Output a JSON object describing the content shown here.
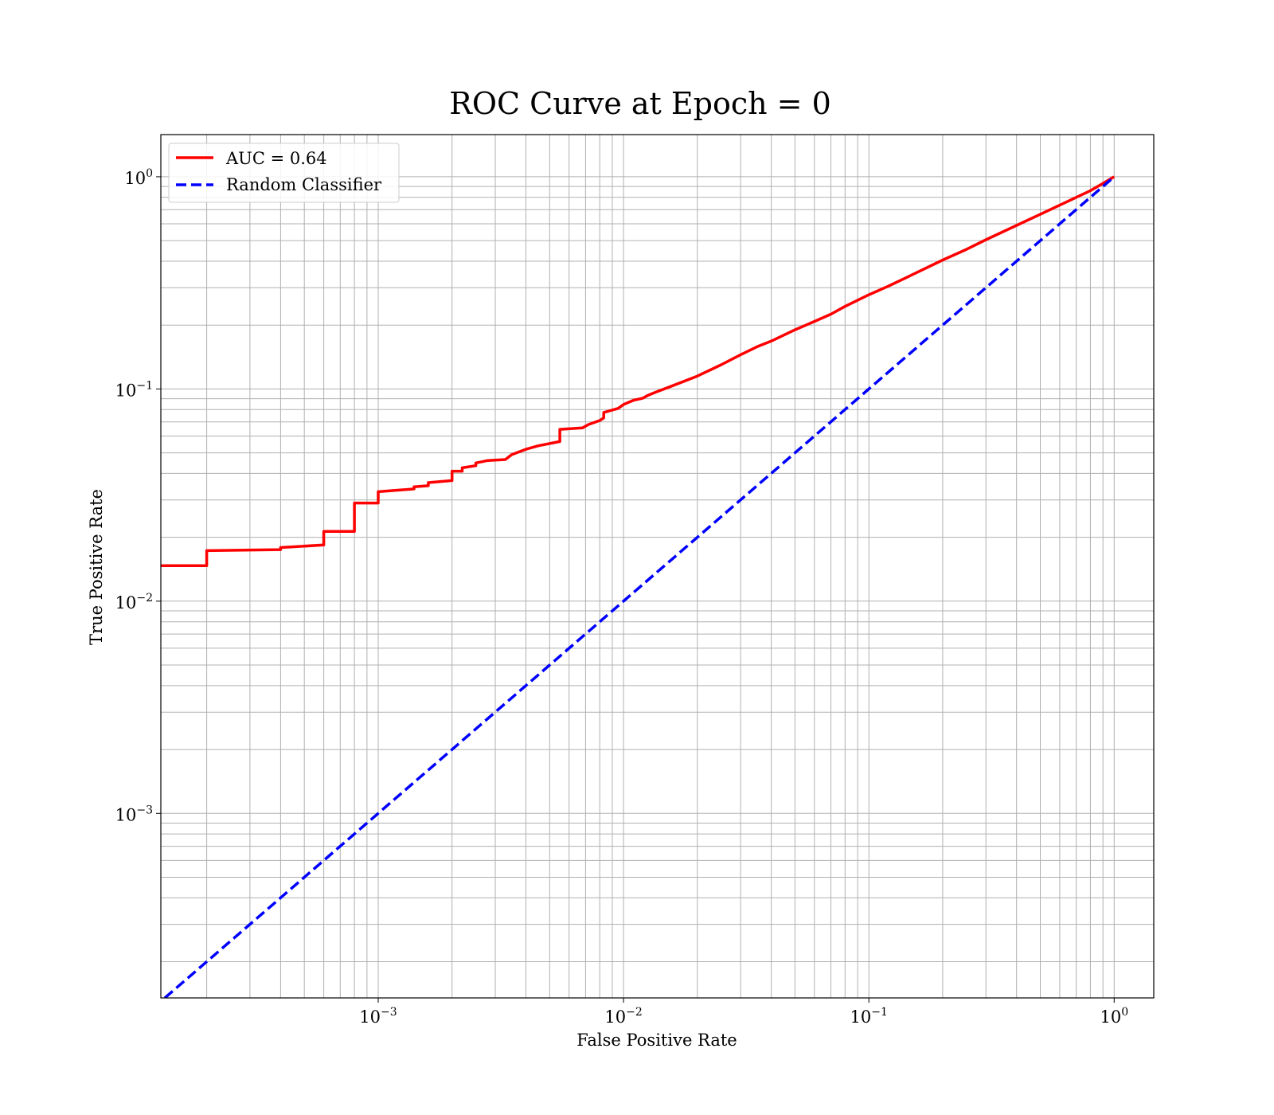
{
  "chart_data": {
    "type": "line",
    "title": "ROC Curve at Epoch = 0",
    "xlabel": "False Positive Rate",
    "ylabel": "True Positive Rate",
    "xscale": "log",
    "yscale": "log",
    "xlim": [
      0.00013,
      1.45
    ],
    "ylim": [
      0.000135,
      1.58
    ],
    "grid": true,
    "grid_minor": true,
    "legend_position": "top-left",
    "x_ticks": [
      {
        "value": 0.001,
        "base": "10",
        "exp": "−3"
      },
      {
        "value": 0.01,
        "base": "10",
        "exp": "−2"
      },
      {
        "value": 0.1,
        "base": "10",
        "exp": "−1"
      },
      {
        "value": 1,
        "base": "10",
        "exp": "0"
      }
    ],
    "y_ticks": [
      {
        "value": 0.001,
        "base": "10",
        "exp": "−3"
      },
      {
        "value": 0.01,
        "base": "10",
        "exp": "−2"
      },
      {
        "value": 0.1,
        "base": "10",
        "exp": "−1"
      },
      {
        "value": 1,
        "base": "10",
        "exp": "0"
      }
    ],
    "series": [
      {
        "name": "AUC = 0.64",
        "color": "#ff0000",
        "style": "solid",
        "x": [
          0.0001,
          0.0002,
          0.0002,
          0.0004,
          0.0004,
          0.0006,
          0.0006,
          0.0008,
          0.0008,
          0.001,
          0.001,
          0.0014,
          0.0014,
          0.0016,
          0.0016,
          0.002,
          0.002,
          0.0022,
          0.0022,
          0.0025,
          0.0025,
          0.0028,
          0.0033,
          0.0035,
          0.004,
          0.0045,
          0.0055,
          0.0055,
          0.0068,
          0.0072,
          0.008,
          0.0083,
          0.0083,
          0.0095,
          0.01,
          0.011,
          0.012,
          0.0125,
          0.0135,
          0.015,
          0.02,
          0.025,
          0.03,
          0.035,
          0.04,
          0.05,
          0.06,
          0.07,
          0.08,
          0.1,
          0.12,
          0.15,
          0.2,
          0.25,
          0.3,
          0.4,
          0.5,
          0.6,
          0.7,
          0.8,
          0.9,
          1.0
        ],
        "y": [
          0.0147,
          0.0147,
          0.0173,
          0.0175,
          0.0179,
          0.0184,
          0.0213,
          0.0213,
          0.029,
          0.029,
          0.0328,
          0.0338,
          0.0346,
          0.035,
          0.0362,
          0.037,
          0.041,
          0.041,
          0.0425,
          0.0435,
          0.0448,
          0.046,
          0.0465,
          0.049,
          0.052,
          0.054,
          0.0565,
          0.0645,
          0.0655,
          0.068,
          0.071,
          0.073,
          0.0775,
          0.081,
          0.0845,
          0.0885,
          0.0905,
          0.093,
          0.0965,
          0.101,
          0.115,
          0.13,
          0.145,
          0.158,
          0.168,
          0.19,
          0.208,
          0.225,
          0.245,
          0.278,
          0.305,
          0.345,
          0.405,
          0.455,
          0.505,
          0.59,
          0.665,
          0.735,
          0.8,
          0.86,
          0.93,
          1.0
        ]
      },
      {
        "name": "Random Classifier",
        "color": "#0000ff",
        "style": "dashed",
        "x": [
          0.000135,
          1.0
        ],
        "y": [
          0.000135,
          1.0
        ]
      }
    ]
  }
}
